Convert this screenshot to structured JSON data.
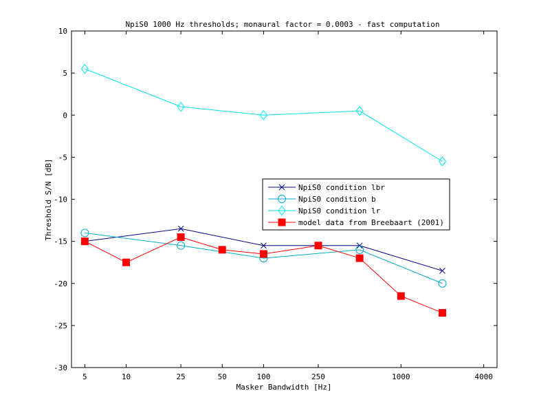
{
  "chart_data": {
    "type": "line",
    "title": "NpiS0 1000 Hz thresholds; monaural factor = 0.0003 - fast computation",
    "xlabel": "Masker Bandwidth [Hz]",
    "ylabel": "Threshold S/N [dB]",
    "xscale": "log",
    "xlim": [
      4,
      5000
    ],
    "ylim": [
      -30,
      10
    ],
    "xticks": [
      5,
      10,
      25,
      50,
      100,
      250,
      1000,
      4000
    ],
    "xtick_labels": [
      "5",
      "10",
      "25",
      "50",
      "100",
      "250",
      "1000",
      "4000"
    ],
    "yticks": [
      -30,
      -25,
      -20,
      -15,
      -10,
      -5,
      0,
      5,
      10
    ],
    "ytick_labels": [
      "-30",
      "-25",
      "-20",
      "-15",
      "-10",
      "-5",
      "0",
      "5",
      "10"
    ],
    "legend_position": "center-right",
    "series": [
      {
        "name": "NpiS0 condition lbr",
        "color": "#00008b",
        "marker": "x",
        "x": [
          5,
          25,
          100,
          500,
          2000
        ],
        "y": [
          -15,
          -13.5,
          -15.5,
          -15.5,
          -18.5
        ]
      },
      {
        "name": "NpiS0 condition b",
        "color": "#00aacc",
        "marker": "circle",
        "x": [
          5,
          25,
          100,
          500,
          2000
        ],
        "y": [
          -14,
          -15.5,
          -17,
          -16,
          -20
        ]
      },
      {
        "name": "NpiS0 condition lr",
        "color": "#00e5ee",
        "marker": "diamond",
        "x": [
          5,
          25,
          100,
          500,
          2000
        ],
        "y": [
          5.5,
          1,
          0,
          0.5,
          -5.5
        ]
      },
      {
        "name": "model data from Breebaart (2001)",
        "color": "#ff0000",
        "marker": "square",
        "x": [
          5,
          10,
          25,
          50,
          100,
          250,
          500,
          1000,
          2000
        ],
        "y": [
          -15,
          -17.5,
          -14.5,
          -16,
          -16.5,
          -15.5,
          -17,
          -21.5,
          -23.5
        ]
      }
    ]
  }
}
